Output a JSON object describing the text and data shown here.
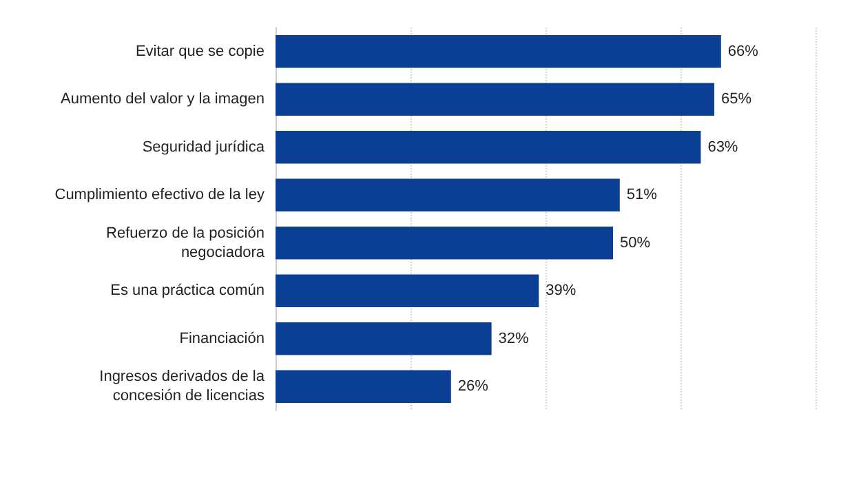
{
  "chart_data": {
    "type": "bar",
    "orientation": "horizontal",
    "categories": [
      "Evitar que se copie",
      "Aumento del valor y la imagen",
      "Seguridad jurídica",
      "Cumplimiento efectivo de la ley",
      "Refuerzo de la posición\nnegociadora",
      "Es una práctica común",
      "Financiación",
      "Ingresos derivados de la\nconcesión de licencias"
    ],
    "values": [
      66,
      65,
      63,
      51,
      50,
      39,
      32,
      26
    ],
    "value_labels": [
      "66%",
      "65%",
      "63%",
      "51%",
      "50%",
      "39%",
      "32%",
      "26%"
    ],
    "color": "#0a3f94",
    "xlim": [
      0,
      80
    ],
    "xticks": [
      {
        "value": 0,
        "label": null
      },
      {
        "value": 20,
        "label": null
      },
      {
        "value": 40,
        "label": null
      },
      {
        "value": 60,
        "label": null
      },
      {
        "value": 80,
        "label": null
      }
    ],
    "grid": "x",
    "tick_labels": "y"
  }
}
